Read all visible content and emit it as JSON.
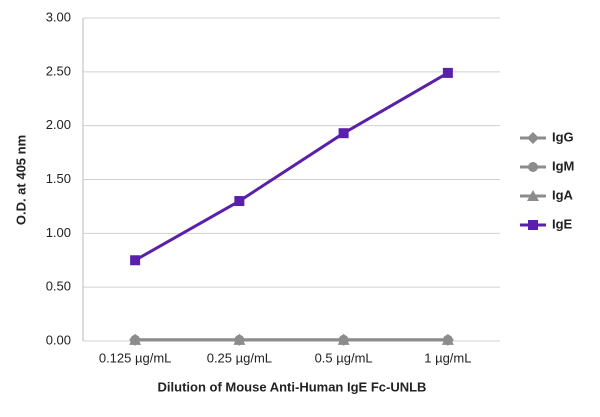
{
  "chart_data": {
    "type": "line",
    "x_label": "Dilution of Mouse Anti-Human IgE Fc-UNLB",
    "y_label": "O.D. at 405 nm",
    "categories": [
      "0.125 µg/mL",
      "0.25 µg/mL",
      "0.5 µg/mL",
      "1 µg/mL"
    ],
    "series": [
      {
        "name": "IgG",
        "color": "#8c8c8c",
        "marker": "diamond",
        "values": [
          0.01,
          0.01,
          0.01,
          0.01
        ]
      },
      {
        "name": "IgM",
        "color": "#8c8c8c",
        "marker": "circle",
        "values": [
          0.01,
          0.01,
          0.01,
          0.01
        ]
      },
      {
        "name": "IgA",
        "color": "#8c8c8c",
        "marker": "triangle",
        "values": [
          0.01,
          0.01,
          0.01,
          0.01
        ]
      },
      {
        "name": "IgE",
        "color": "#5b20aa",
        "marker": "square",
        "values": [
          0.75,
          1.3,
          1.93,
          2.49
        ]
      }
    ],
    "ylim": [
      0,
      3
    ],
    "yticks": [
      {
        "value": 0,
        "label": "0.00"
      },
      {
        "value": 0.5,
        "label": "0.50"
      },
      {
        "value": 1,
        "label": "1.00"
      },
      {
        "value": 1.5,
        "label": "1.50"
      },
      {
        "value": 2,
        "label": "2.00"
      },
      {
        "value": 2.5,
        "label": "2.50"
      },
      {
        "value": 3,
        "label": "3.00"
      }
    ],
    "grid": true,
    "legend": "right"
  }
}
